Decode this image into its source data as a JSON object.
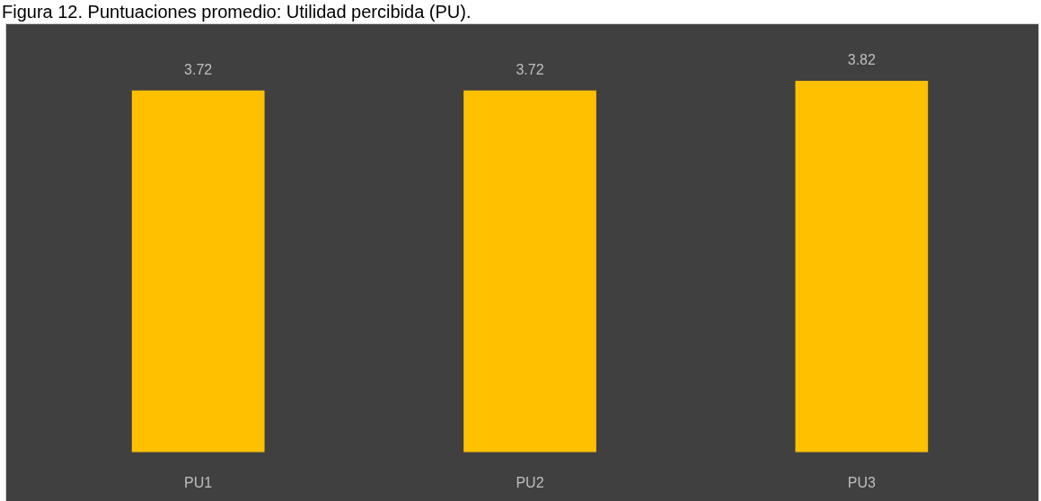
{
  "chart_data": {
    "type": "bar",
    "title": "Figura 12. Puntuaciones promedio: Utilidad percibida (PU).",
    "categories": [
      "PU1",
      "PU2",
      "PU3"
    ],
    "values": [
      3.72,
      3.72,
      3.82
    ],
    "color": "#ffc000",
    "tick_labels": "x",
    "data_labels": true
  }
}
